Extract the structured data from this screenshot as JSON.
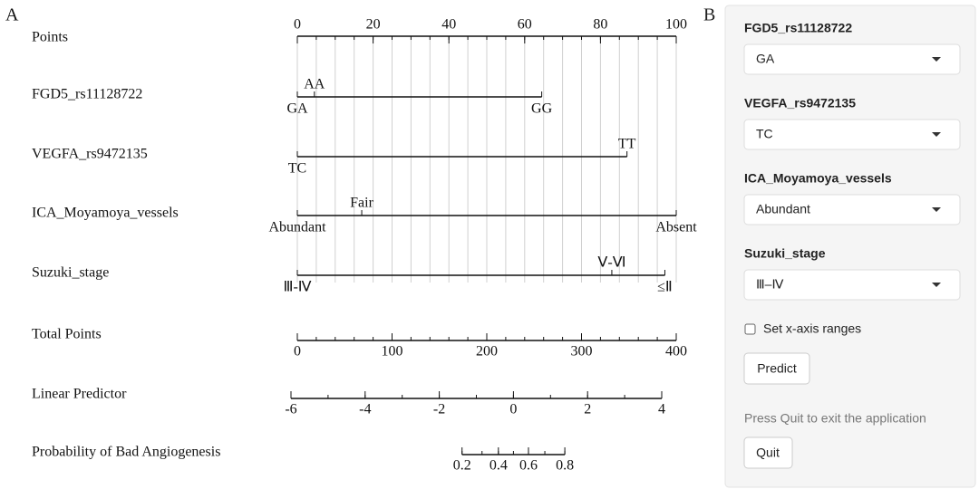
{
  "panel_a": {
    "label": "A",
    "nomogram": {
      "points": {
        "label": "Points",
        "xlim": [
          0,
          100
        ],
        "ticks": [
          0,
          20,
          40,
          60,
          80,
          100
        ],
        "minor_ticks": [
          0,
          5,
          10,
          15,
          20,
          25,
          30,
          35,
          40,
          45,
          50,
          55,
          60,
          65,
          70,
          75,
          80,
          85,
          90,
          95,
          100
        ],
        "grid": true
      },
      "variables": [
        {
          "name": "FGD5_rs11128722",
          "levels": [
            {
              "label": "GA",
              "points": 0
            },
            {
              "label": "AA",
              "points": 4.5
            },
            {
              "label": "GG",
              "points": 64.5
            }
          ]
        },
        {
          "name": "VEGFA_rs9472135",
          "levels": [
            {
              "label": "TC",
              "points": 0
            },
            {
              "label": "TT",
              "points": 87
            }
          ]
        },
        {
          "name": "ICA_Moyamoya_vessels",
          "levels": [
            {
              "label": "Abundant",
              "points": 0
            },
            {
              "label": "Fair",
              "points": 17
            },
            {
              "label": "Absent",
              "points": 100
            }
          ]
        },
        {
          "name": "Suzuki_stage",
          "levels": [
            {
              "label": "Ⅲ-Ⅳ",
              "points": 0
            },
            {
              "label": "Ⅴ-Ⅵ",
              "points": 83
            },
            {
              "label": "≤Ⅱ",
              "points": 97
            }
          ]
        }
      ],
      "total_points": {
        "label": "Total Points",
        "xlim": [
          0,
          400
        ],
        "ticks": [
          0,
          100,
          200,
          300,
          400
        ],
        "minor_ticks": [
          0,
          20,
          40,
          60,
          80,
          100,
          120,
          140,
          160,
          180,
          200,
          220,
          240,
          260,
          280,
          300,
          320,
          340,
          360,
          380,
          400
        ]
      },
      "linear_predictor": {
        "label": "Linear Predictor",
        "xlim": [
          -6,
          4
        ],
        "ticks": [
          -6,
          -4,
          -2,
          0,
          2,
          4
        ],
        "minor_ticks": [
          -6,
          -5,
          -4,
          -3,
          -2,
          -1,
          0,
          1,
          2,
          3,
          4
        ]
      },
      "probability": {
        "label": "Probability of Bad Angiogenesis",
        "scale": "logit",
        "ticks": [
          0.2,
          0.4,
          0.6,
          0.8
        ],
        "minor_ticks": [
          0.2,
          0.3,
          0.4,
          0.5,
          0.6,
          0.7,
          0.8
        ]
      }
    }
  },
  "panel_b": {
    "label": "B",
    "inputs": [
      {
        "label": "FGD5_rs11128722",
        "value": "GA"
      },
      {
        "label": "VEGFA_rs9472135",
        "value": "TC"
      },
      {
        "label": "ICA_Moyamoya_vessels",
        "value": "Abundant"
      },
      {
        "label": "Suzuki_stage",
        "value": "Ⅲ–Ⅳ"
      }
    ],
    "checkbox": "Set x-axis ranges",
    "predict": "Predict",
    "note": "Press Quit to exit the application",
    "quit": "Quit"
  }
}
